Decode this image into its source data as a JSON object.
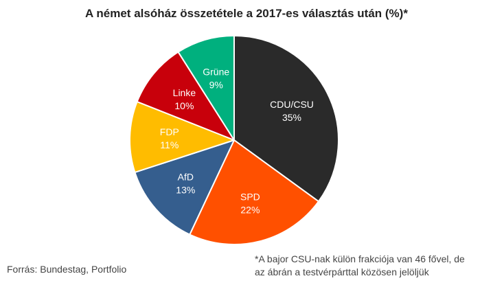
{
  "chart_data": {
    "type": "pie",
    "title": "A német alsóház összetétele a 2017-es választás után (%)*",
    "slices": [
      {
        "label": "CDU/CSU",
        "value": 35,
        "value_label": "35%",
        "color": "#2a2a2a"
      },
      {
        "label": "SPD",
        "value": 22,
        "value_label": "22%",
        "color": "#ff5000"
      },
      {
        "label": "AfD",
        "value": 13,
        "value_label": "13%",
        "color": "#355e8e"
      },
      {
        "label": "FDP",
        "value": 11,
        "value_label": "11%",
        "color": "#ffbc00"
      },
      {
        "label": "Linke",
        "value": 10,
        "value_label": "10%",
        "color": "#c8000b"
      },
      {
        "label": "Grüne",
        "value": 9,
        "value_label": "9%",
        "color": "#00b07e"
      }
    ],
    "legend": false
  },
  "source": "Forrás: Bundestag, Portfolio",
  "footnote": {
    "line1": "*A bajor CSU-nak külön frakciója van 46 fővel, de",
    "line2": "az ábrán a testvérpárttal közösen jelöljük"
  }
}
